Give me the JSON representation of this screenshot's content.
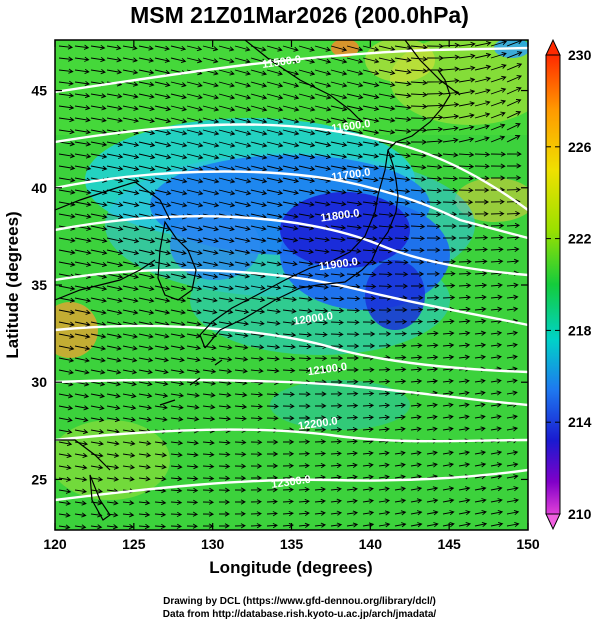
{
  "chart_data": {
    "type": "heatmap",
    "title": "MSM 21Z01Mar2026 (200.0hPa)",
    "xlabel": "Longitude (degrees)",
    "ylabel": "Latitude  (degrees)",
    "xlim": [
      120,
      150
    ],
    "ylim": [
      22.4,
      47.6
    ],
    "x_ticks": [
      120,
      125,
      130,
      135,
      140,
      145,
      150
    ],
    "y_ticks": [
      25,
      30,
      35,
      40,
      45
    ],
    "colorbar": {
      "min": 210,
      "max": 230,
      "tick_values": [
        230,
        226,
        222,
        218,
        214,
        210
      ],
      "tick_labels": [
        "230",
        "226",
        "222",
        "218",
        "214",
        "210"
      ]
    },
    "contour_labels": [
      {
        "text": "11500.0",
        "lon": 134.4,
        "lat": 46.3
      },
      {
        "text": "11600.0",
        "lon": 138.8,
        "lat": 43.0
      },
      {
        "text": "11700.0",
        "lon": 138.8,
        "lat": 40.5
      },
      {
        "text": "11800.0",
        "lon": 138.1,
        "lat": 38.4
      },
      {
        "text": "11900.0",
        "lon": 138.0,
        "lat": 35.9
      },
      {
        "text": "12000.0",
        "lon": 136.4,
        "lat": 33.1
      },
      {
        "text": "12100.0",
        "lon": 137.3,
        "lat": 30.5
      },
      {
        "text": "12200.0",
        "lon": 136.7,
        "lat": 27.7
      },
      {
        "text": "12300.0",
        "lon": 135.0,
        "lat": 24.7
      }
    ],
    "credits": [
      "Drawing by DCL (https://www.gfd-dennou.org/library/dcl/)",
      "Data from http://database.rish.kyoto-u.ac.jp/arch/jmadata/"
    ]
  }
}
